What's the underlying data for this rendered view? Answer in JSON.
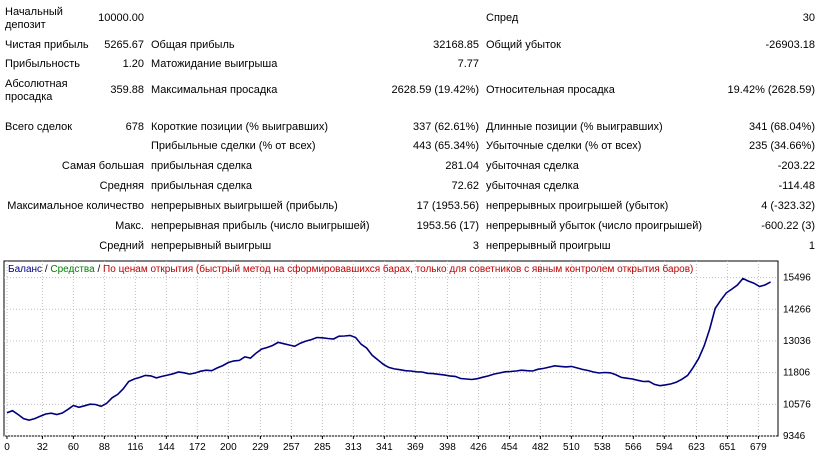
{
  "report": {
    "initial_deposit_label": "Начальный депозит",
    "initial_deposit_value": "10000.00",
    "spread_label": "Спред",
    "spread_value": "30",
    "net_profit_label": "Чистая прибыль",
    "net_profit_value": "5265.67",
    "gross_profit_label": "Общая прибыль",
    "gross_profit_value": "32168.85",
    "gross_loss_label": "Общий убыток",
    "gross_loss_value": "-26903.18",
    "profitability_label": "Прибыльность",
    "profitability_value": "1.20",
    "expected_payoff_label": "Матожидание выигрыша",
    "expected_payoff_value": "7.77",
    "abs_drawdown_label": "Абсолютная просадка",
    "abs_drawdown_value": "359.88",
    "max_drawdown_label": "Максимальная просадка",
    "max_drawdown_value": "2628.59 (19.42%)",
    "rel_drawdown_label": "Относительная просадка",
    "rel_drawdown_value": "19.42% (2628.59)",
    "total_trades_label": "Всего сделок",
    "total_trades_value": "678",
    "short_positions_label": "Короткие позиции (% выигравших)",
    "short_positions_value": "337 (62.61%)",
    "long_positions_label": "Длинные позиции (% выигравших)",
    "long_positions_value": "341 (68.04%)",
    "profit_trades_label": "Прибыльные сделки (% от всех)",
    "profit_trades_value": "443 (65.34%)",
    "loss_trades_label": "Убыточные сделки (% от всех)",
    "loss_trades_value": "235 (34.66%)",
    "largest_label": "Самая большая",
    "largest_profit_label": "прибыльная сделка",
    "largest_profit_value": "281.04",
    "largest_loss_label": "убыточная сделка",
    "largest_loss_value": "-203.22",
    "average_label": "Средняя",
    "average_profit_label": "прибыльная сделка",
    "average_profit_value": "72.62",
    "average_loss_label": "убыточная сделка",
    "average_loss_value": "-114.48",
    "max_count_label": "Максимальное количество",
    "max_consec_wins_label": "непрерывных выигрышей (прибыль)",
    "max_consec_wins_value": "17 (1953.56)",
    "max_consec_losses_label": "непрерывных проигрышей (убыток)",
    "max_consec_losses_value": "4 (-323.32)",
    "max_label": "Макс.",
    "max_consec_profit_label": "непрерывная прибыль (число выигрышей)",
    "max_consec_profit_value": "1953.56 (17)",
    "max_consec_loss_label": "непрерывный убыток (число проигрышей)",
    "max_consec_loss_value": "-600.22 (3)",
    "avg_label": "Средний",
    "avg_consec_wins_label": "непрерывный выигрыш",
    "avg_consec_wins_value": "3",
    "avg_consec_losses_label": "непрерывный проигрыш",
    "avg_consec_losses_value": "1"
  },
  "legend": {
    "balance": "Баланс",
    "sep1": " / ",
    "equity": "Средства",
    "sep2": " / ",
    "note": "По ценам открытия (быстрый метод на сформировавшихся барах, только для советников с явным контролем открытия баров)"
  },
  "colors": {
    "line": "#00007f",
    "balance_legend": "#00007f",
    "equity_legend": "#008000",
    "note_legend": "#c00000",
    "grid": "#c0c0c0",
    "frame": "#000000"
  },
  "chart_data": {
    "type": "line",
    "x_ticks": [
      0,
      32,
      60,
      88,
      116,
      144,
      172,
      200,
      229,
      257,
      285,
      313,
      341,
      369,
      398,
      426,
      454,
      482,
      510,
      538,
      566,
      594,
      623,
      651,
      679
    ],
    "y_ticks": [
      9346,
      10576,
      11806,
      13036,
      14266,
      15496
    ],
    "xlim": [
      0,
      694
    ],
    "ylim": [
      9346,
      16140
    ],
    "series": [
      {
        "x": [
          0,
          5,
          10,
          15,
          20,
          25,
          30,
          35,
          40,
          45,
          50,
          55,
          60,
          65,
          70,
          75,
          80,
          85,
          90,
          95,
          100,
          105,
          110,
          115,
          120,
          125,
          130,
          135,
          140,
          145,
          150,
          155,
          160,
          165,
          170,
          175,
          180,
          185,
          190,
          195,
          200,
          205,
          210,
          215,
          220,
          225,
          230,
          235,
          240,
          245,
          250,
          255,
          260,
          265,
          270,
          275,
          280,
          285,
          290,
          295,
          300,
          305,
          310,
          315,
          320,
          325,
          330,
          335,
          340,
          345,
          350,
          355,
          360,
          365,
          370,
          375,
          380,
          385,
          390,
          395,
          400,
          405,
          410,
          415,
          420,
          425,
          430,
          435,
          440,
          445,
          450,
          455,
          460,
          465,
          470,
          475,
          480,
          485,
          490,
          495,
          500,
          505,
          510,
          515,
          520,
          525,
          530,
          535,
          540,
          545,
          550,
          555,
          560,
          565,
          570,
          575,
          580,
          585,
          590,
          595,
          600,
          605,
          610,
          615,
          620,
          625,
          630,
          635,
          640,
          645,
          650,
          655,
          660,
          665,
          670,
          675,
          680,
          685,
          690
        ],
        "y": [
          10250,
          10330,
          10180,
          10020,
          9960,
          10020,
          10110,
          10200,
          10230,
          10180,
          10240,
          10380,
          10530,
          10460,
          10520,
          10580,
          10570,
          10500,
          10610,
          10830,
          10960,
          11180,
          11460,
          11560,
          11620,
          11700,
          11680,
          11600,
          11660,
          11710,
          11760,
          11830,
          11800,
          11750,
          11790,
          11860,
          11900,
          11880,
          11990,
          12080,
          12200,
          12260,
          12280,
          12420,
          12370,
          12560,
          12720,
          12780,
          12860,
          12980,
          12930,
          12880,
          12830,
          12950,
          13030,
          13090,
          13170,
          13160,
          13130,
          13110,
          13220,
          13230,
          13250,
          13170,
          12910,
          12760,
          12480,
          12310,
          12130,
          12010,
          11950,
          11920,
          11880,
          11870,
          11840,
          11830,
          11780,
          11770,
          11740,
          11720,
          11680,
          11660,
          11580,
          11560,
          11540,
          11570,
          11630,
          11680,
          11750,
          11790,
          11840,
          11850,
          11870,
          11900,
          11880,
          11870,
          11940,
          11970,
          12020,
          12070,
          12050,
          12030,
          12050,
          11990,
          11930,
          11890,
          11830,
          11790,
          11810,
          11800,
          11730,
          11620,
          11590,
          11560,
          11510,
          11460,
          11470,
          11350,
          11300,
          11330,
          11370,
          11440,
          11550,
          11700,
          12000,
          12350,
          12850,
          13500,
          14300,
          14620,
          14900,
          15050,
          15210,
          15460,
          15360,
          15280,
          15150,
          15210,
          15330
        ]
      }
    ]
  }
}
